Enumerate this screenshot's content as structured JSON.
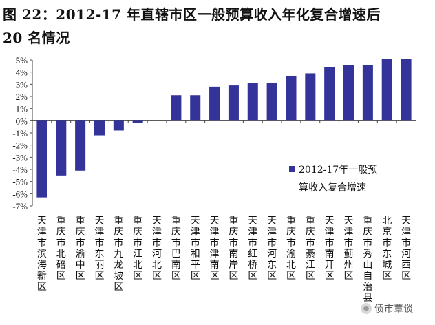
{
  "header": {
    "title_line1": "图 22：2012-17 年直辖市区一般预算收入年化复合增速后",
    "title_line2": "20 名情况"
  },
  "watermark": {
    "text": "债市覃谈",
    "icon": "wechat-icon"
  },
  "chart_data": {
    "type": "bar",
    "title": "",
    "xlabel": "",
    "ylabel": "",
    "ylim": [
      -7,
      5
    ],
    "ytick_step": 1,
    "yticks": [
      "5%",
      "4%",
      "3%",
      "2%",
      "1%",
      "0%",
      "-1%",
      "-2%",
      "-3%",
      "-4%",
      "-5%",
      "-6%",
      "-7%"
    ],
    "grid": false,
    "legend_position": "lower-right",
    "bar_color": "#333399",
    "categories": [
      "天津市滨海新区",
      "重庆市北碚区",
      "重庆市渝中区",
      "天津市东丽区",
      "重庆市九龙坡区",
      "重庆市江北区",
      "天津市河北区",
      "重庆市巴南区",
      "天津市和平区",
      "天津市津南区",
      "重庆市南岸区",
      "天津市红桥区",
      "天津市河东区",
      "重庆市渝北区",
      "重庆市綦江区",
      "天津市南开区",
      "天津市蓟州区",
      "重庆市秀山自治县",
      "北京市东城区",
      "天津市河西区"
    ],
    "series": [
      {
        "name": "2012-17年一般预算收入复合增速",
        "values": [
          -6.3,
          -4.5,
          -4.1,
          -1.2,
          -0.8,
          -0.2,
          0.0,
          2.1,
          2.1,
          2.8,
          2.9,
          3.1,
          3.1,
          3.7,
          3.9,
          4.4,
          4.6,
          4.6,
          5.1,
          5.1
        ]
      }
    ],
    "legend": {
      "line1": "2012-17年一般预",
      "line2": "算收入复合增速"
    }
  }
}
